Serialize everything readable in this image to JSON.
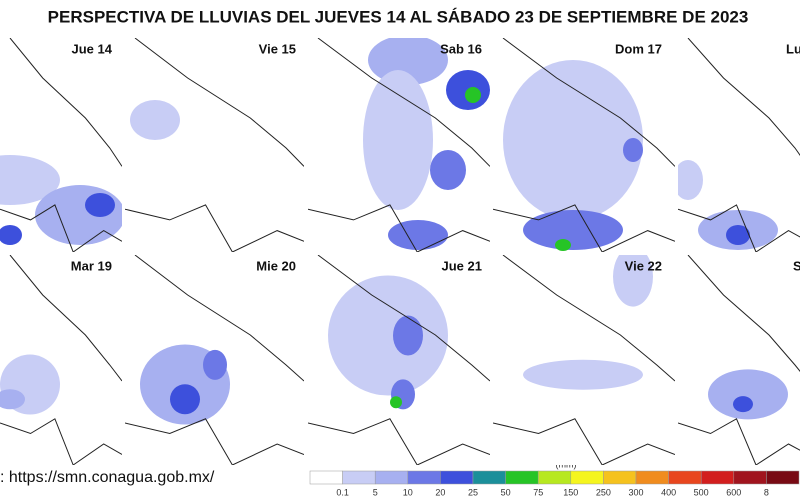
{
  "header": {
    "title": "PERSPECTIVA DE LLUVIAS DEL JUEVES 14 AL SÁBADO 23 DE SEPTIEMBRE DE 2023"
  },
  "panels": [
    {
      "label": "Jue 14"
    },
    {
      "label": "Vie 15"
    },
    {
      "label": "Sab 16"
    },
    {
      "label": "Dom 17"
    },
    {
      "label": "Lu"
    },
    {
      "label": "Mar 19"
    },
    {
      "label": "Mie 20"
    },
    {
      "label": "Jue 21"
    },
    {
      "label": "Vie 22"
    },
    {
      "label": "S"
    }
  ],
  "footer": {
    "source": ": https://smn.conagua.gob.mx/"
  },
  "legend": {
    "unit": "(mm)",
    "labels": [
      "0.1",
      "5",
      "10",
      "20",
      "25",
      "50",
      "75",
      "150",
      "250",
      "300",
      "400",
      "500",
      "600",
      "8"
    ]
  }
}
